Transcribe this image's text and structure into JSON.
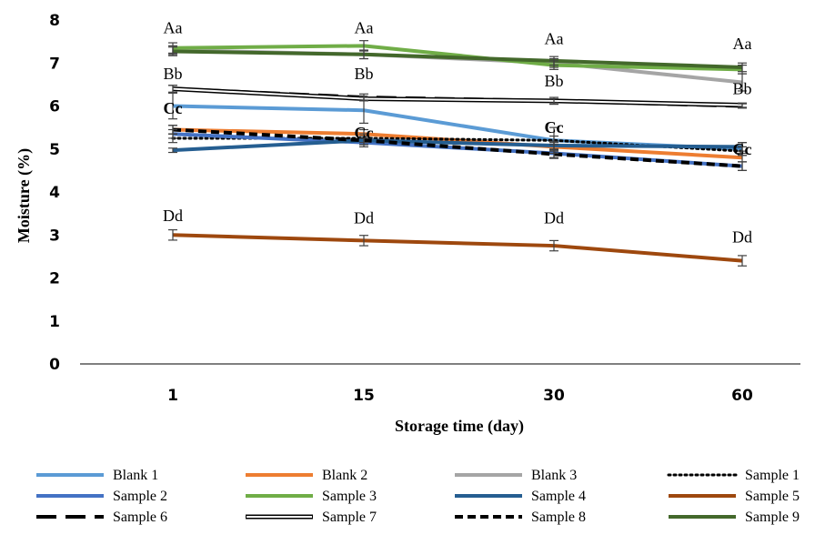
{
  "chart_data": {
    "type": "line",
    "title": "",
    "xlabel": "Storage time (day)",
    "ylabel": "Moisture (%)",
    "categories": [
      "1",
      "15",
      "30",
      "60"
    ],
    "ylim": [
      0,
      8
    ],
    "yticks": [
      "0",
      "1",
      "2",
      "3",
      "4",
      "5",
      "6",
      "7",
      "8"
    ],
    "legend_position": "bottom",
    "grid": false,
    "series": [
      {
        "name": "Blank 1",
        "values": [
          6.0,
          5.9,
          5.2,
          5.0
        ],
        "color": "#5B9BD5",
        "style": "solid",
        "error": [
          0.3,
          0.3,
          0.3,
          0.15
        ]
      },
      {
        "name": "Blank 2",
        "values": [
          5.45,
          5.35,
          5.05,
          4.8
        ],
        "color": "#ED7D31",
        "style": "solid",
        "error": [
          0.1,
          0.1,
          0.1,
          0.1
        ]
      },
      {
        "name": "Blank 3",
        "values": [
          7.3,
          7.2,
          7.0,
          6.55
        ],
        "color": "#A5A5A5",
        "style": "solid",
        "error": [
          0.1,
          0.1,
          0.1,
          0.2
        ]
      },
      {
        "name": "Sample 1",
        "values": [
          5.25,
          5.25,
          5.2,
          4.95
        ],
        "color": "#000000",
        "style": "dotted",
        "error": [
          0.1,
          0.1,
          0.1,
          0.1
        ]
      },
      {
        "name": "Sample 2",
        "values": [
          5.35,
          5.15,
          4.9,
          4.6
        ],
        "color": "#4472C4",
        "style": "solid",
        "error": [
          0.1,
          0.1,
          0.1,
          0.1
        ]
      },
      {
        "name": "Sample 3",
        "values": [
          7.35,
          7.4,
          6.95,
          6.85
        ],
        "color": "#70AD47",
        "style": "solid",
        "error": [
          0.12,
          0.12,
          0.1,
          0.1
        ]
      },
      {
        "name": "Sample 4",
        "values": [
          4.97,
          5.2,
          5.08,
          5.05
        ],
        "color": "#255E91",
        "style": "solid",
        "error": [
          0.05,
          0.1,
          0.1,
          0.1
        ]
      },
      {
        "name": "Sample 5",
        "values": [
          3.0,
          2.87,
          2.75,
          2.4
        ],
        "color": "#9E480E",
        "style": "solid",
        "error": [
          0.12,
          0.12,
          0.12,
          0.12
        ]
      },
      {
        "name": "Sample 6",
        "values": [
          6.4,
          6.2,
          6.12,
          6.0
        ],
        "color": "#000000",
        "style": "longdash",
        "error": [
          0.08,
          0.08,
          0.08,
          0.05
        ]
      },
      {
        "name": "Sample 7",
        "values": [
          6.4,
          6.17,
          6.12,
          6.02
        ],
        "color": "#000000",
        "style": "double",
        "error": [
          0.08,
          0.05,
          0.05,
          0.05
        ]
      },
      {
        "name": "Sample 8",
        "values": [
          5.45,
          5.2,
          4.88,
          4.6
        ],
        "color": "#000000",
        "style": "dash",
        "error": [
          0.1,
          0.1,
          0.1,
          0.1
        ]
      },
      {
        "name": "Sample 9",
        "values": [
          7.27,
          7.2,
          7.05,
          6.9
        ],
        "color": "#43682B",
        "style": "solid",
        "error": [
          0.1,
          0.1,
          0.1,
          0.1
        ]
      }
    ],
    "annotations": [
      {
        "text": "Aa",
        "x": "1",
        "y": 7.82,
        "bold": false
      },
      {
        "text": "Aa",
        "x": "15",
        "y": 7.82,
        "bold": false
      },
      {
        "text": "Aa",
        "x": "30",
        "y": 7.57,
        "bold": false
      },
      {
        "text": "Aa",
        "x": "60",
        "y": 7.45,
        "bold": false
      },
      {
        "text": "Bb",
        "x": "1",
        "y": 6.75,
        "bold": false
      },
      {
        "text": "Bb",
        "x": "15",
        "y": 6.75,
        "bold": false
      },
      {
        "text": "Bb",
        "x": "30",
        "y": 6.58,
        "bold": false
      },
      {
        "text": "Bb",
        "x": "60",
        "y": 6.4,
        "bold": false
      },
      {
        "text": "Cc",
        "x": "1",
        "y": 5.95,
        "bold": true
      },
      {
        "text": "Cc",
        "x": "15",
        "y": 5.38,
        "bold": true
      },
      {
        "text": "Cc",
        "x": "30",
        "y": 5.5,
        "bold": true
      },
      {
        "text": "Cc",
        "x": "60",
        "y": 5.0,
        "bold": true
      },
      {
        "text": "Dd",
        "x": "1",
        "y": 3.45,
        "bold": false
      },
      {
        "text": "Dd",
        "x": "15",
        "y": 3.4,
        "bold": false
      },
      {
        "text": "Dd",
        "x": "30",
        "y": 3.4,
        "bold": false
      },
      {
        "text": "Dd",
        "x": "60",
        "y": 2.95,
        "bold": false
      }
    ]
  }
}
